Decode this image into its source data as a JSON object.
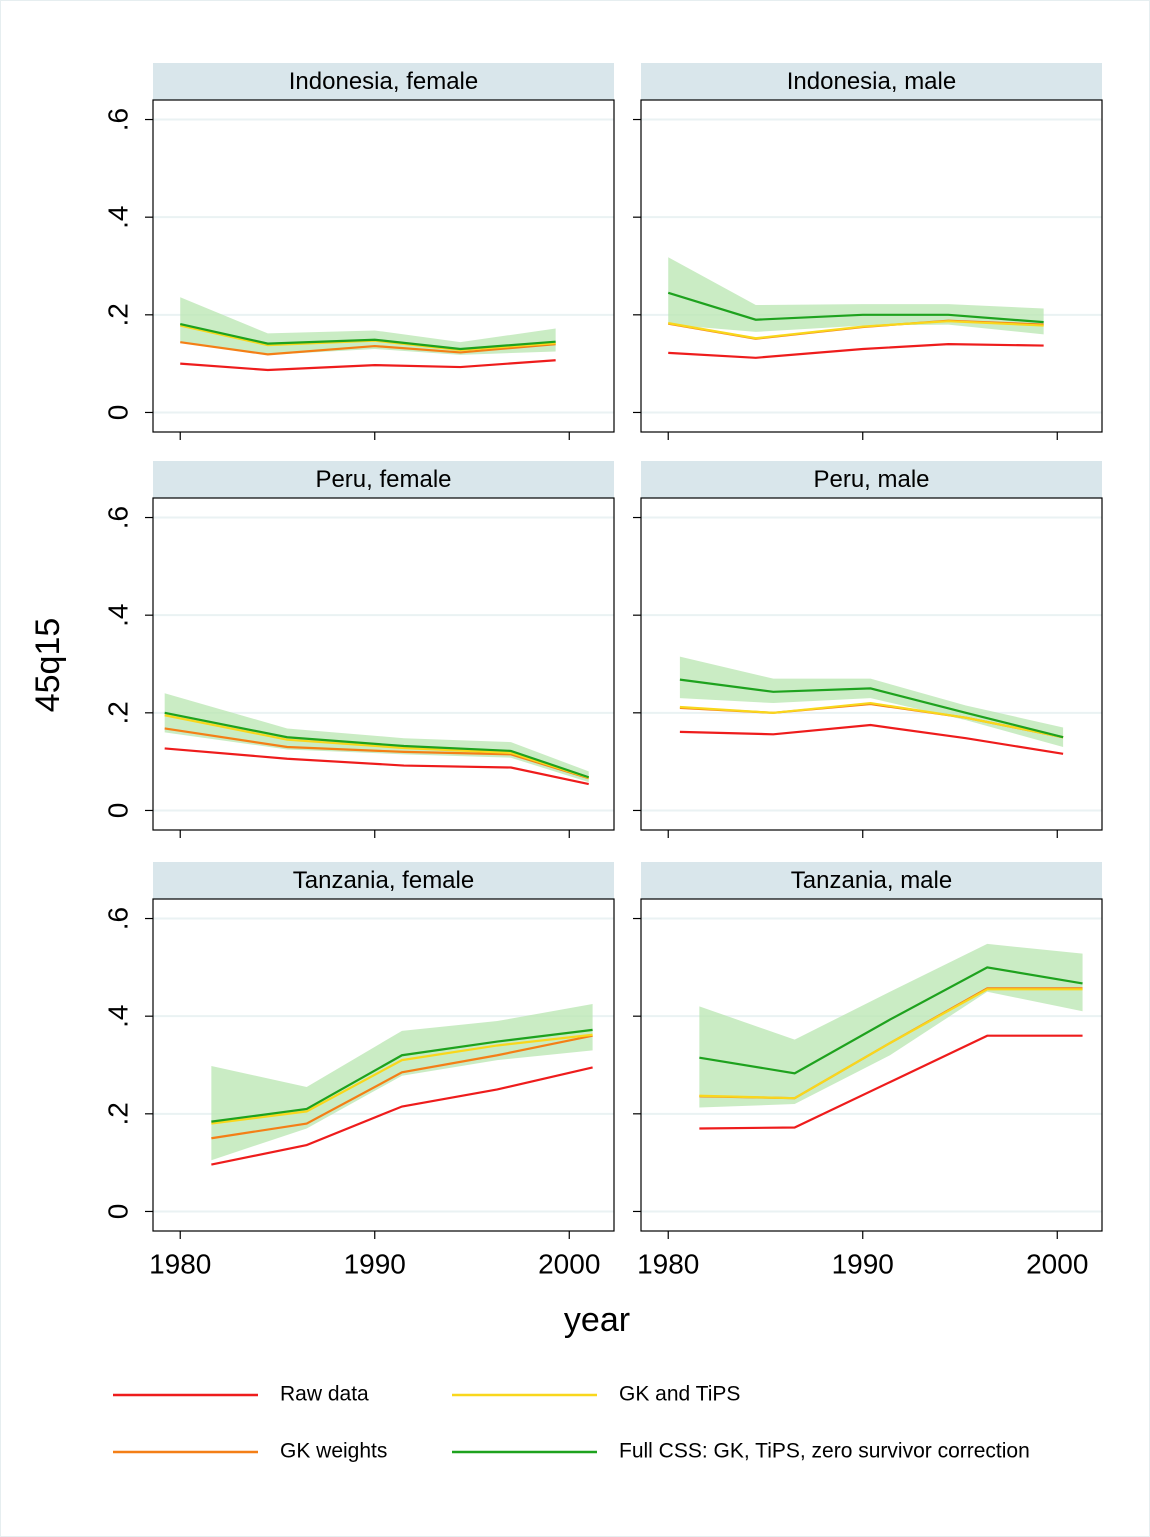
{
  "y_label": "45q15",
  "x_label": "year",
  "xlim": [
    1978.6,
    2002.3
  ],
  "ylim": [
    -0.04,
    0.64
  ],
  "yticks": [
    0,
    {
      "value": 0.2,
      "label": ".2"
    },
    {
      "value": 0.4,
      "label": ".4"
    },
    {
      "value": 0.6,
      "label": ".6"
    }
  ],
  "xticks": [
    1980,
    1990,
    2000
  ],
  "grid": true,
  "legend": {
    "series": [
      {
        "name": "Raw data",
        "color": "#ee1c1c"
      },
      {
        "name": "GK weights",
        "color": "#f47f16"
      },
      {
        "name": "GK and TiPS",
        "color": "#f9d71c"
      },
      {
        "name": "Full CSS: GK, TiPS, zero survivor correction",
        "color": "#1ea21e"
      }
    ],
    "band_color": "#b8e6b0"
  },
  "chart_data": [
    {
      "type": "line",
      "title": "Indonesia, female",
      "x": [
        1980,
        1984.5,
        1990,
        1994.4,
        1999.3
      ],
      "series": [
        {
          "values": [
            0.1,
            0.087,
            0.097,
            0.093,
            0.107
          ]
        },
        {
          "values": [
            0.144,
            0.119,
            0.136,
            0.123,
            0.14
          ]
        },
        {
          "values": [
            0.178,
            0.138,
            0.147,
            0.128,
            0.142
          ]
        },
        {
          "values": [
            0.181,
            0.141,
            0.149,
            0.13,
            0.145
          ],
          "lower": [
            0.145,
            0.118,
            0.13,
            0.118,
            0.125
          ],
          "upper": [
            0.236,
            0.162,
            0.168,
            0.144,
            0.172
          ]
        }
      ]
    },
    {
      "type": "line",
      "title": "Indonesia, male",
      "x": [
        1980,
        1984.5,
        1990,
        1994.4,
        1999.3
      ],
      "series": [
        {
          "values": [
            0.122,
            0.112,
            0.13,
            0.14,
            0.137
          ]
        },
        {
          "values": [
            0.182,
            0.151,
            0.175,
            0.188,
            0.18
          ]
        },
        {
          "values": [
            0.183,
            0.152,
            0.176,
            0.187,
            0.178
          ]
        },
        {
          "values": [
            0.245,
            0.19,
            0.2,
            0.2,
            0.185
          ],
          "lower": [
            0.18,
            0.165,
            0.178,
            0.18,
            0.16
          ],
          "upper": [
            0.318,
            0.22,
            0.222,
            0.222,
            0.213
          ]
        }
      ]
    },
    {
      "type": "line",
      "title": "Peru, female",
      "x": [
        1979.2,
        1985.5,
        1991.5,
        1997,
        2001
      ],
      "series": [
        {
          "values": [
            0.127,
            0.106,
            0.092,
            0.088,
            0.054
          ]
        },
        {
          "values": [
            0.168,
            0.13,
            0.12,
            0.115,
            0.066
          ]
        },
        {
          "values": [
            0.195,
            0.145,
            0.128,
            0.118,
            0.067
          ]
        },
        {
          "values": [
            0.2,
            0.15,
            0.132,
            0.122,
            0.068
          ],
          "lower": [
            0.16,
            0.125,
            0.115,
            0.108,
            0.058
          ],
          "upper": [
            0.24,
            0.168,
            0.148,
            0.14,
            0.08
          ]
        }
      ]
    },
    {
      "type": "line",
      "title": "Peru, male",
      "x": [
        1980.6,
        1985.4,
        1990.4,
        1995.3,
        2000.3
      ],
      "series": [
        {
          "values": [
            0.161,
            0.156,
            0.175,
            0.148,
            0.116
          ]
        },
        {
          "values": [
            0.21,
            0.2,
            0.218,
            0.19,
            0.15
          ]
        },
        {
          "values": [
            0.212,
            0.2,
            0.22,
            0.19,
            0.15
          ]
        },
        {
          "values": [
            0.268,
            0.243,
            0.25,
            0.2,
            0.15
          ],
          "lower": [
            0.23,
            0.22,
            0.23,
            0.185,
            0.13
          ],
          "upper": [
            0.315,
            0.27,
            0.27,
            0.215,
            0.17
          ]
        }
      ]
    },
    {
      "type": "line",
      "title": "Tanzania, female",
      "x": [
        1981.6,
        1986.5,
        1991.4,
        1996.3,
        2001.2
      ],
      "series": [
        {
          "values": [
            0.096,
            0.136,
            0.215,
            0.25,
            0.295
          ]
        },
        {
          "values": [
            0.15,
            0.18,
            0.285,
            0.32,
            0.36
          ]
        },
        {
          "values": [
            0.18,
            0.205,
            0.31,
            0.34,
            0.362
          ]
        },
        {
          "values": [
            0.184,
            0.21,
            0.32,
            0.348,
            0.372
          ],
          "lower": [
            0.105,
            0.17,
            0.278,
            0.31,
            0.33
          ],
          "upper": [
            0.298,
            0.255,
            0.37,
            0.39,
            0.425
          ]
        }
      ]
    },
    {
      "type": "line",
      "title": "Tanzania, male",
      "x": [
        1981.6,
        1986.5,
        1991.4,
        1996.4,
        2001.3
      ],
      "series": [
        {
          "values": [
            0.17,
            0.172,
            0.265,
            0.36,
            0.36
          ]
        },
        {
          "values": [
            0.236,
            0.232,
            0.345,
            0.457,
            0.457
          ]
        },
        {
          "values": [
            0.237,
            0.232,
            0.345,
            0.455,
            0.455
          ]
        },
        {
          "values": [
            0.315,
            0.283,
            0.393,
            0.5,
            0.467
          ],
          "lower": [
            0.213,
            0.22,
            0.32,
            0.45,
            0.41
          ],
          "upper": [
            0.42,
            0.352,
            0.45,
            0.548,
            0.528
          ]
        }
      ]
    }
  ]
}
